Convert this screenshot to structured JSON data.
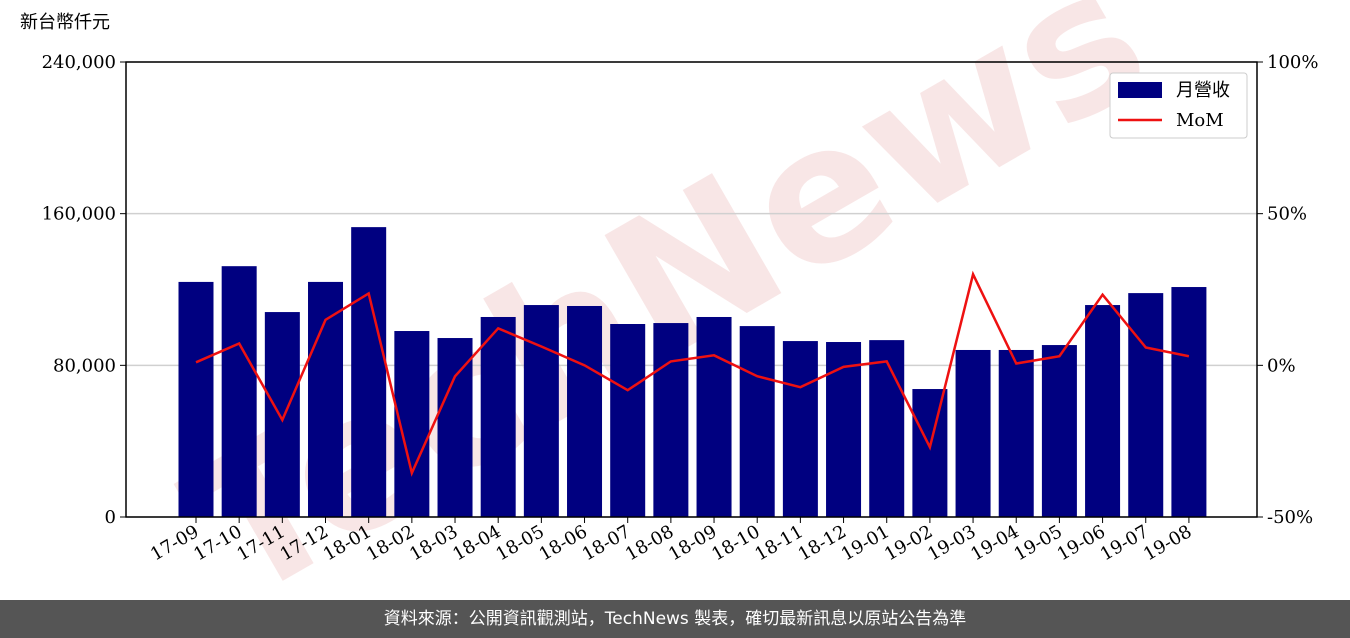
{
  "chart_data": {
    "type": "bar-line",
    "ylabel": "新台幣仟元",
    "watermark": "TechNews",
    "categories": [
      "17-09",
      "17-10",
      "17-11",
      "17-12",
      "18-01",
      "18-02",
      "18-03",
      "18-04",
      "18-05",
      "18-06",
      "18-07",
      "18-08",
      "18-09",
      "18-10",
      "18-11",
      "18-12",
      "19-01",
      "19-02",
      "19-03",
      "19-04",
      "19-05",
      "19-06",
      "19-07",
      "19-08"
    ],
    "series": [
      {
        "name": "月營收",
        "type": "bar",
        "color": "#000080",
        "values": [
          124000,
          132300,
          108100,
          124000,
          152900,
          98100,
          94400,
          105500,
          111800,
          111300,
          101800,
          102300,
          105500,
          100700,
          92800,
          92300,
          93300,
          67500,
          88100,
          88100,
          90700,
          111800,
          118100,
          121300
        ]
      },
      {
        "name": "MoM",
        "type": "line",
        "axis": "y2",
        "color": "#ee1111",
        "values": [
          1,
          7.2,
          -18,
          15,
          23.7,
          -35.5,
          -3.6,
          12.2,
          6.2,
          0,
          -8.2,
          1.3,
          3.3,
          -3.6,
          -7.2,
          -0.5,
          1.3,
          -27,
          30,
          0.6,
          3,
          23.3,
          5.9,
          3
        ]
      }
    ],
    "ylim": [
      0,
      240000
    ],
    "yticks": [
      0,
      {
        "value": 80000,
        "label": "80,000"
      },
      {
        "value": 160000,
        "label": "160,000"
      },
      {
        "value": 240000,
        "label": "240,000"
      }
    ],
    "y2lim": [
      -50,
      100
    ],
    "y2ticks": [
      {
        "value": -50,
        "label": "-50%"
      },
      {
        "value": 0,
        "label": "0%"
      },
      {
        "value": 50,
        "label": "50%"
      },
      {
        "value": 100,
        "label": "100%"
      }
    ],
    "grid": true,
    "legend": "upper right"
  },
  "footer": "資料來源：公開資訊觀測站，TechNews 製表，確切最新訊息以原站公告為準"
}
